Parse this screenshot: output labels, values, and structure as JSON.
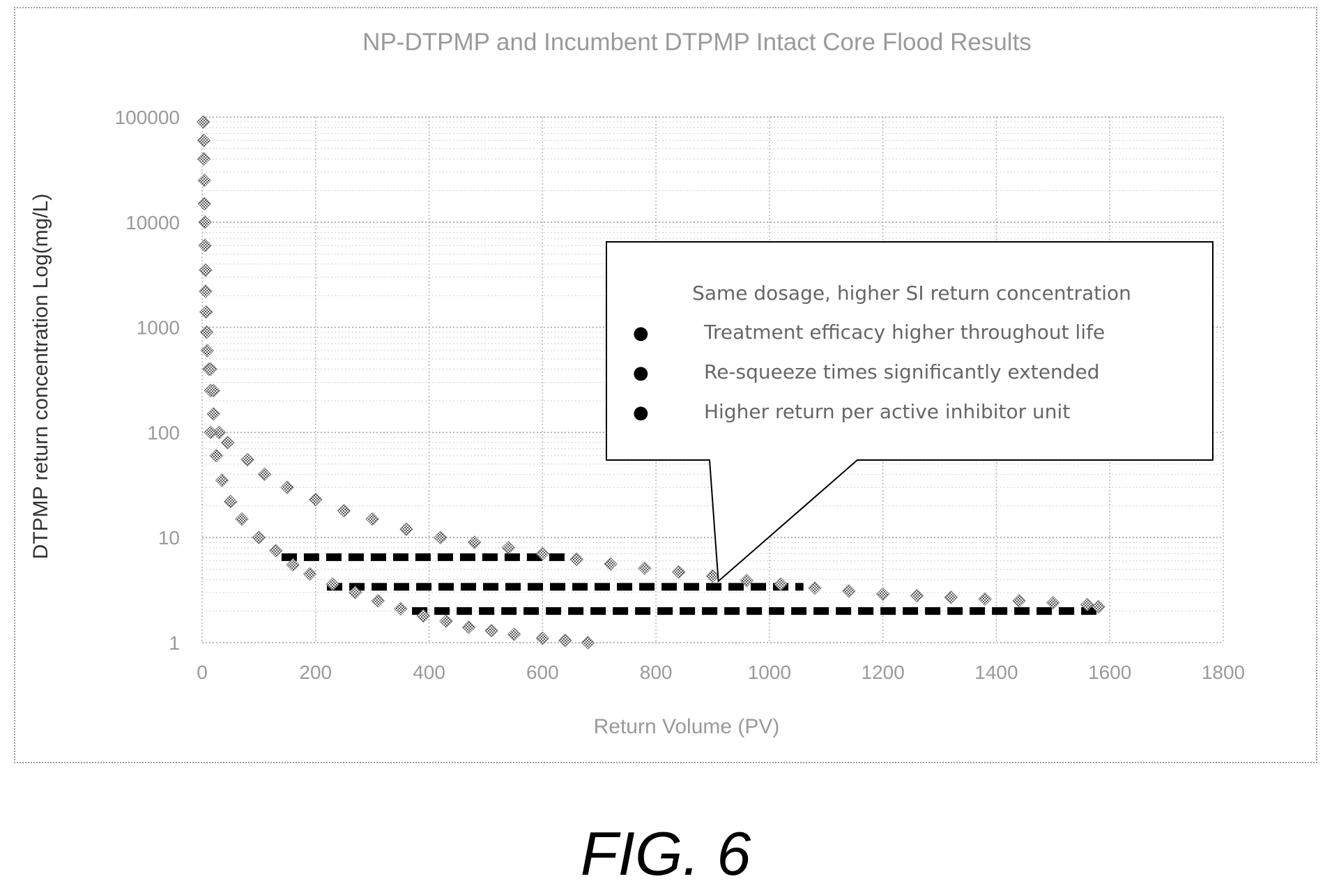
{
  "chart_data": {
    "type": "scatter",
    "title": "NP-DTPMP and Incumbent DTPMP Intact Core Flood Results",
    "xlabel": "Return Volume (PV)",
    "ylabel": "DTPMP return concentration Log(mg/L)",
    "xlim": [
      0,
      1800
    ],
    "ylim": [
      1,
      100000
    ],
    "yscale": "log",
    "grid": true,
    "xticks": [
      "0",
      "200",
      "400",
      "600",
      "800",
      "1000",
      "1200",
      "1400",
      "1600",
      "1800"
    ],
    "yticks": [
      "1",
      "10",
      "100",
      "1000",
      "10000",
      "100000"
    ],
    "series": [
      {
        "values": [
          [
            2,
            90000
          ],
          [
            3,
            60000
          ],
          [
            3,
            40000
          ],
          [
            4,
            25000
          ],
          [
            4,
            15000
          ],
          [
            5,
            10000
          ],
          [
            5,
            6000
          ],
          [
            6,
            3500
          ],
          [
            6,
            2200
          ],
          [
            7,
            1400
          ],
          [
            8,
            900
          ],
          [
            9,
            600
          ],
          [
            12,
            400
          ],
          [
            15,
            250
          ],
          [
            20,
            150
          ],
          [
            30,
            100
          ],
          [
            45,
            80
          ],
          [
            80,
            55
          ],
          [
            110,
            40
          ],
          [
            150,
            30
          ],
          [
            200,
            23
          ],
          [
            250,
            18
          ],
          [
            300,
            15
          ],
          [
            360,
            12
          ],
          [
            420,
            10
          ],
          [
            480,
            9
          ],
          [
            540,
            8
          ],
          [
            600,
            7
          ],
          [
            660,
            6.2
          ],
          [
            720,
            5.6
          ],
          [
            780,
            5.1
          ],
          [
            840,
            4.7
          ],
          [
            900,
            4.3
          ],
          [
            960,
            3.9
          ],
          [
            1020,
            3.6
          ],
          [
            1080,
            3.3
          ],
          [
            1140,
            3.1
          ],
          [
            1200,
            2.9
          ],
          [
            1260,
            2.8
          ],
          [
            1320,
            2.7
          ],
          [
            1380,
            2.6
          ],
          [
            1440,
            2.5
          ],
          [
            1500,
            2.4
          ],
          [
            1560,
            2.3
          ],
          [
            1580,
            2.2
          ]
        ]
      },
      {
        "values": [
          [
            15,
            400
          ],
          [
            20,
            250
          ],
          [
            15,
            100
          ],
          [
            25,
            60
          ],
          [
            35,
            35
          ],
          [
            50,
            22
          ],
          [
            70,
            15
          ],
          [
            100,
            10
          ],
          [
            130,
            7.5
          ],
          [
            160,
            5.5
          ],
          [
            190,
            4.5
          ],
          [
            230,
            3.6
          ],
          [
            270,
            3.0
          ],
          [
            310,
            2.5
          ],
          [
            350,
            2.1
          ],
          [
            390,
            1.8
          ],
          [
            430,
            1.6
          ],
          [
            470,
            1.4
          ],
          [
            510,
            1.3
          ],
          [
            550,
            1.2
          ],
          [
            600,
            1.1
          ],
          [
            640,
            1.05
          ],
          [
            680,
            1.0
          ]
        ]
      }
    ],
    "dashed_lines": [
      {
        "x_start": 140,
        "x_end": 640,
        "y": 6.5
      },
      {
        "x_start": 220,
        "x_end": 1060,
        "y": 3.4
      },
      {
        "x_start": 370,
        "x_end": 1580,
        "y": 2.0
      }
    ],
    "annotation": {
      "heading": "Same dosage, higher SI return concentration",
      "bullets": [
        "Treatment efficacy higher throughout life",
        "Re-squeeze times significantly extended",
        "Higher return per active inhibitor unit"
      ],
      "pointer_target": [
        910,
        3.4
      ]
    }
  },
  "caption": "FIG. 6"
}
